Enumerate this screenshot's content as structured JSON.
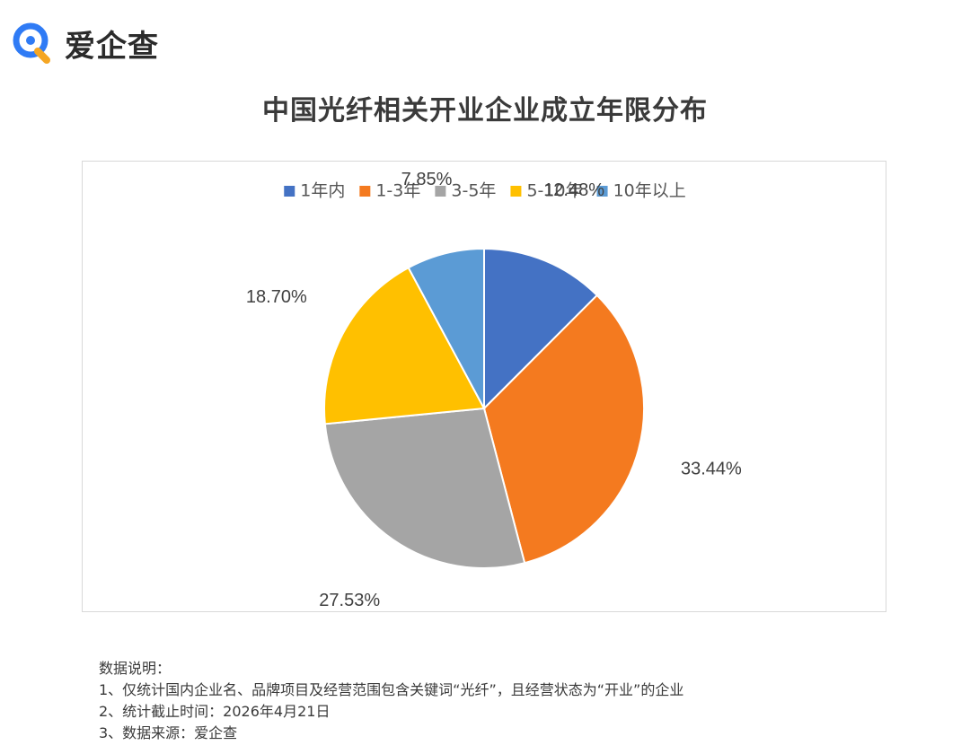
{
  "brand": {
    "name": "爱企查"
  },
  "page_title": "中国光纤相关开业企业成立年限分布",
  "colors": {
    "blue": "#4472C4",
    "orange": "#F47A1F",
    "gray": "#A5A5A5",
    "yellow": "#FFC000",
    "lightblue": "#5B9BD5",
    "logo_blue": "#2F7BF5",
    "logo_orange": "#F5A623"
  },
  "chart_data": {
    "type": "pie",
    "title": "",
    "legend_position": "top",
    "start_angle": "12 o'clock, clockwise",
    "categories": [
      "1年内",
      "1-3年",
      "3-5年",
      "5-10年",
      "10年以上"
    ],
    "values": [
      12.48,
      33.44,
      27.53,
      18.7,
      7.85
    ],
    "labels": [
      "12.48%",
      "33.44%",
      "27.53%",
      "18.70%",
      "7.85%"
    ],
    "colors": [
      "#4472C4",
      "#F47A1F",
      "#A5A5A5",
      "#FFC000",
      "#5B9BD5"
    ]
  },
  "notes": {
    "heading": "数据说明：",
    "line1": "1、仅统计国内企业名、品牌项目及经营范围包含关键词“光纤”，且经营状态为“开业”的企业",
    "line2": "2、统计截止时间：2026年4月21日",
    "line3": "3、数据来源：爱企查"
  }
}
